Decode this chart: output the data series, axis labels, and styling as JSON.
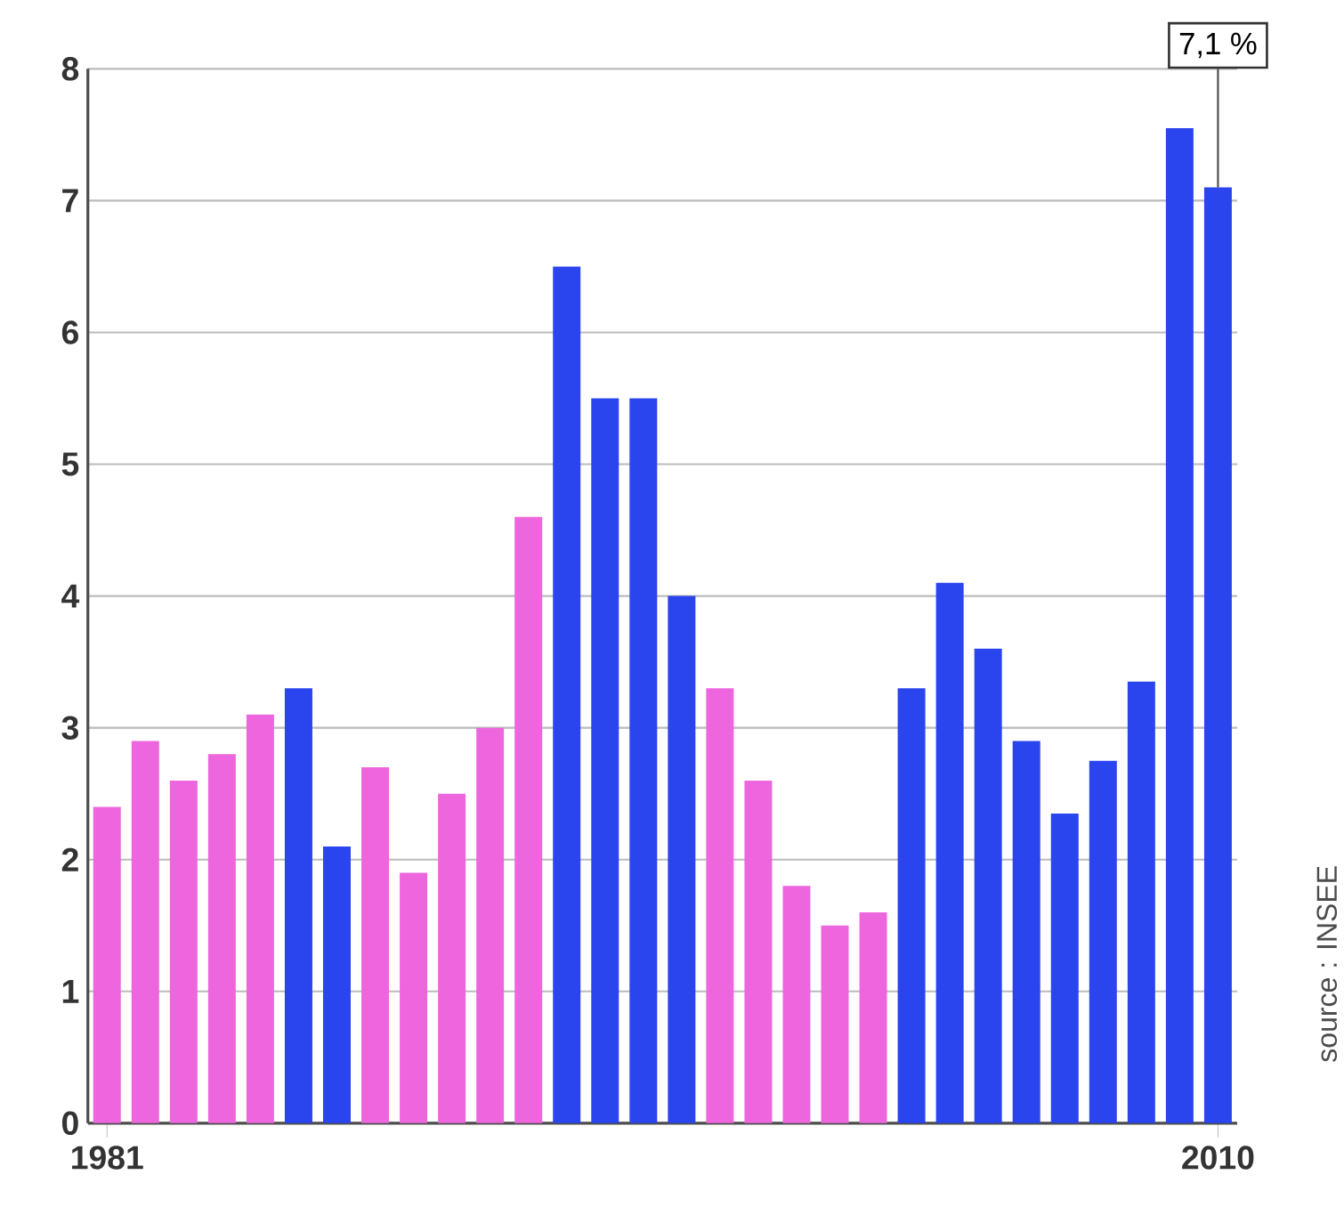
{
  "chart_data": {
    "type": "bar",
    "categories": [
      "1981",
      null,
      null,
      null,
      null,
      null,
      null,
      null,
      null,
      null,
      null,
      null,
      null,
      null,
      null,
      null,
      null,
      null,
      null,
      null,
      null,
      null,
      null,
      null,
      null,
      null,
      null,
      null,
      null,
      "2010"
    ],
    "values": [
      2.4,
      2.9,
      2.6,
      2.8,
      3.1,
      3.3,
      2.1,
      2.7,
      1.9,
      2.5,
      3.0,
      4.6,
      6.5,
      5.5,
      5.5,
      4.0,
      3.3,
      2.6,
      1.8,
      1.5,
      1.6,
      3.3,
      4.1,
      3.6,
      2.9,
      2.35,
      2.75,
      3.35,
      7.55,
      7.1
    ],
    "colors": [
      "#ee66dd",
      "#ee66dd",
      "#ee66dd",
      "#ee66dd",
      "#ee66dd",
      "#2a44ee",
      "#2a44ee",
      "#ee66dd",
      "#ee66dd",
      "#ee66dd",
      "#ee66dd",
      "#ee66dd",
      "#2a44ee",
      "#2a44ee",
      "#2a44ee",
      "#2a44ee",
      "#ee66dd",
      "#ee66dd",
      "#ee66dd",
      "#ee66dd",
      "#ee66dd",
      "#2a44ee",
      "#2a44ee",
      "#2a44ee",
      "#2a44ee",
      "#2a44ee",
      "#2a44ee",
      "#2a44ee",
      "#2a44ee",
      "#2a44ee"
    ],
    "value_labels": [
      null,
      null,
      null,
      null,
      null,
      null,
      null,
      null,
      null,
      null,
      null,
      null,
      null,
      null,
      null,
      null,
      null,
      null,
      null,
      null,
      null,
      null,
      null,
      null,
      null,
      null,
      null,
      null,
      null,
      "7,1 %"
    ],
    "ylim": [
      0,
      8
    ],
    "yticks": [
      0,
      1,
      2,
      3,
      4,
      5,
      6,
      7,
      8
    ],
    "grid": "y",
    "annotations": [
      "source : INSEE"
    ]
  }
}
